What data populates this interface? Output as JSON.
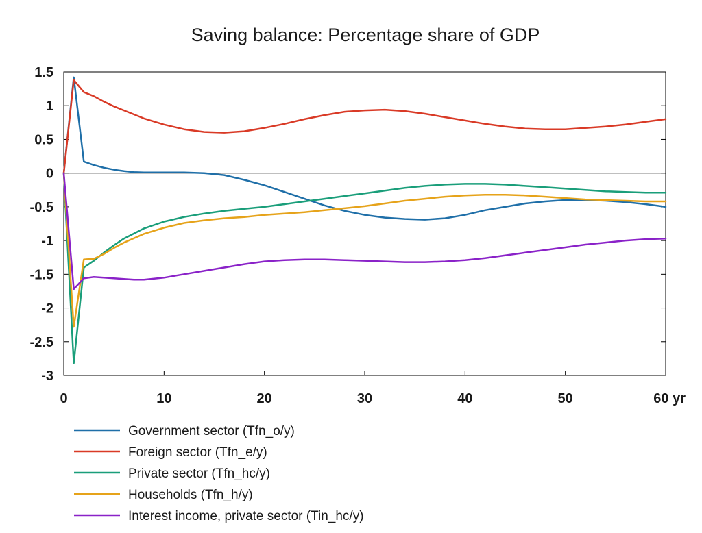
{
  "chart_data": {
    "type": "line",
    "title": "Saving balance: Percentage share of GDP",
    "xlabel": "",
    "ylabel": "",
    "x_unit": "yr",
    "xlim": [
      0,
      60
    ],
    "ylim": [
      -3,
      1.5
    ],
    "x_ticks": [
      0,
      10,
      20,
      30,
      40,
      50,
      60
    ],
    "y_ticks": [
      1.5,
      1,
      0.5,
      0,
      -0.5,
      -1,
      -1.5,
      -2,
      -2.5,
      -3
    ],
    "x_tick_labels": [
      "0",
      "10",
      "20",
      "30",
      "40",
      "50",
      "60 yr"
    ],
    "y_tick_labels": [
      "1.5",
      "1",
      "0.5",
      "0",
      "-0.5",
      "-1",
      "-1.5",
      "-2",
      "-2.5",
      "-3"
    ],
    "grid": false,
    "zero_line": true,
    "legend_position": "bottom",
    "series": [
      {
        "name": "Government sector (Tfn_o/y)",
        "color": "#1f6fa8",
        "x": [
          0,
          1,
          2,
          3,
          4,
          5,
          6,
          7,
          8,
          10,
          12,
          14,
          16,
          18,
          20,
          22,
          24,
          26,
          28,
          30,
          32,
          34,
          36,
          38,
          40,
          42,
          44,
          46,
          48,
          50,
          52,
          54,
          56,
          58,
          60
        ],
        "y": [
          0,
          1.42,
          0.17,
          0.12,
          0.08,
          0.05,
          0.03,
          0.015,
          0.01,
          0.01,
          0.01,
          0.0,
          -0.03,
          -0.1,
          -0.18,
          -0.28,
          -0.38,
          -0.48,
          -0.56,
          -0.62,
          -0.66,
          -0.68,
          -0.69,
          -0.67,
          -0.62,
          -0.55,
          -0.5,
          -0.45,
          -0.42,
          -0.4,
          -0.4,
          -0.41,
          -0.43,
          -0.46,
          -0.5
        ]
      },
      {
        "name": "Foreign sector (Tfn_e/y)",
        "color": "#d93a26",
        "x": [
          0,
          1,
          2,
          3,
          4,
          5,
          6,
          8,
          10,
          12,
          14,
          16,
          18,
          20,
          22,
          24,
          26,
          28,
          30,
          32,
          34,
          36,
          38,
          40,
          42,
          44,
          46,
          48,
          50,
          52,
          54,
          56,
          58,
          60
        ],
        "y": [
          0,
          1.38,
          1.2,
          1.14,
          1.06,
          0.99,
          0.93,
          0.81,
          0.72,
          0.65,
          0.61,
          0.6,
          0.62,
          0.67,
          0.73,
          0.8,
          0.86,
          0.91,
          0.93,
          0.94,
          0.92,
          0.88,
          0.83,
          0.78,
          0.73,
          0.69,
          0.66,
          0.65,
          0.65,
          0.67,
          0.69,
          0.72,
          0.76,
          0.8
        ]
      },
      {
        "name": "Private sector (Tfn_hc/y)",
        "color": "#1a9e7a",
        "x": [
          0,
          1,
          2,
          3,
          4,
          5,
          6,
          8,
          10,
          12,
          14,
          16,
          18,
          20,
          22,
          24,
          26,
          28,
          30,
          32,
          34,
          36,
          38,
          40,
          42,
          44,
          46,
          48,
          50,
          52,
          54,
          56,
          58,
          60
        ],
        "y": [
          0,
          -2.82,
          -1.4,
          -1.3,
          -1.18,
          -1.07,
          -0.97,
          -0.82,
          -0.72,
          -0.65,
          -0.6,
          -0.56,
          -0.53,
          -0.5,
          -0.46,
          -0.42,
          -0.38,
          -0.34,
          -0.3,
          -0.26,
          -0.22,
          -0.19,
          -0.17,
          -0.16,
          -0.16,
          -0.17,
          -0.19,
          -0.21,
          -0.23,
          -0.25,
          -0.27,
          -0.28,
          -0.29,
          -0.29
        ]
      },
      {
        "name": "Households (Tfn_h/y)",
        "color": "#e6a31a",
        "x": [
          0,
          1,
          2,
          3,
          4,
          5,
          6,
          8,
          10,
          12,
          14,
          16,
          18,
          20,
          22,
          24,
          26,
          28,
          30,
          32,
          34,
          36,
          38,
          40,
          42,
          44,
          46,
          48,
          50,
          52,
          54,
          56,
          58,
          60
        ],
        "y": [
          0,
          -2.28,
          -1.28,
          -1.27,
          -1.2,
          -1.11,
          -1.03,
          -0.9,
          -0.81,
          -0.74,
          -0.7,
          -0.67,
          -0.65,
          -0.62,
          -0.6,
          -0.58,
          -0.55,
          -0.52,
          -0.49,
          -0.45,
          -0.41,
          -0.38,
          -0.35,
          -0.33,
          -0.32,
          -0.32,
          -0.33,
          -0.35,
          -0.37,
          -0.39,
          -0.4,
          -0.41,
          -0.42,
          -0.42
        ]
      },
      {
        "name": "Interest income, private sector (Tin_hc/y)",
        "color": "#8a22c8",
        "x": [
          0,
          1,
          2,
          3,
          4,
          5,
          6,
          7,
          8,
          10,
          12,
          14,
          16,
          18,
          20,
          22,
          24,
          26,
          28,
          30,
          32,
          34,
          36,
          38,
          40,
          42,
          44,
          46,
          48,
          50,
          52,
          54,
          56,
          58,
          60
        ],
        "y": [
          0,
          -1.72,
          -1.56,
          -1.54,
          -1.55,
          -1.56,
          -1.57,
          -1.58,
          -1.58,
          -1.55,
          -1.5,
          -1.45,
          -1.4,
          -1.35,
          -1.31,
          -1.29,
          -1.28,
          -1.28,
          -1.29,
          -1.3,
          -1.31,
          -1.32,
          -1.32,
          -1.31,
          -1.29,
          -1.26,
          -1.22,
          -1.18,
          -1.14,
          -1.1,
          -1.06,
          -1.03,
          -1.0,
          -0.98,
          -0.97
        ]
      }
    ]
  }
}
